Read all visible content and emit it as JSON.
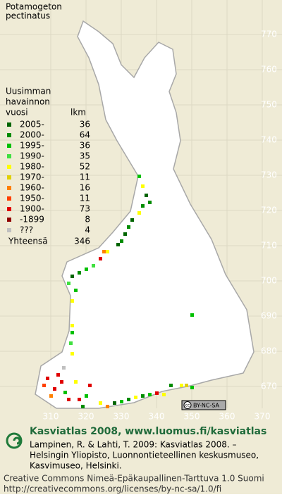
{
  "title": [
    "Potamogeton",
    "pectinatus"
  ],
  "legend": {
    "header": [
      "Uusimman",
      "havainnon",
      "vuosi"
    ],
    "count_header": "lkm",
    "rows": [
      {
        "label": "2005-",
        "count": 36,
        "color": "#006400"
      },
      {
        "label": "2000-",
        "count": 64,
        "color": "#008c00"
      },
      {
        "label": "1995-",
        "count": 36,
        "color": "#00c000"
      },
      {
        "label": "1990-",
        "count": 35,
        "color": "#40e040"
      },
      {
        "label": "1980-",
        "count": 52,
        "color": "#ffff00"
      },
      {
        "label": "1970-",
        "count": 11,
        "color": "#e0d000"
      },
      {
        "label": "1960-",
        "count": 16,
        "color": "#ff8000"
      },
      {
        "label": "1950-",
        "count": 11,
        "color": "#ff4000"
      },
      {
        "label": "1900-",
        "count": 73,
        "color": "#e00000"
      },
      {
        "label": "-1899",
        "count": 8,
        "color": "#900000"
      },
      {
        "label": "???",
        "count": 4,
        "color": "#c0c0c0"
      }
    ],
    "total_label": "Yhteensä",
    "total": 346
  },
  "grid": {
    "y_labels": [
      770,
      760,
      750,
      740,
      730,
      720,
      710,
      700,
      690,
      680,
      670
    ],
    "x_labels": [
      310,
      320,
      330,
      340,
      350,
      360,
      370
    ]
  },
  "badge": "BY-NC-SA",
  "footer": {
    "heading": "Kasviatlas 2008, www.luomus.fi/kasviatlas",
    "citation": [
      "Lampinen, R. & Lahti, T. 2009: Kasviatlas 2008. –",
      "Helsingin Yliopisto, Luonnontieteellinen keskusmuseo,",
      "Kasvimuseo, Helsinki."
    ],
    "license": [
      "Creative Commons Nimeä-Epäkaupallinen-Tarttuva 1.0 Suomi",
      "http://creativecommons.org/licenses/by-nc-sa/1.0/fi"
    ]
  }
}
